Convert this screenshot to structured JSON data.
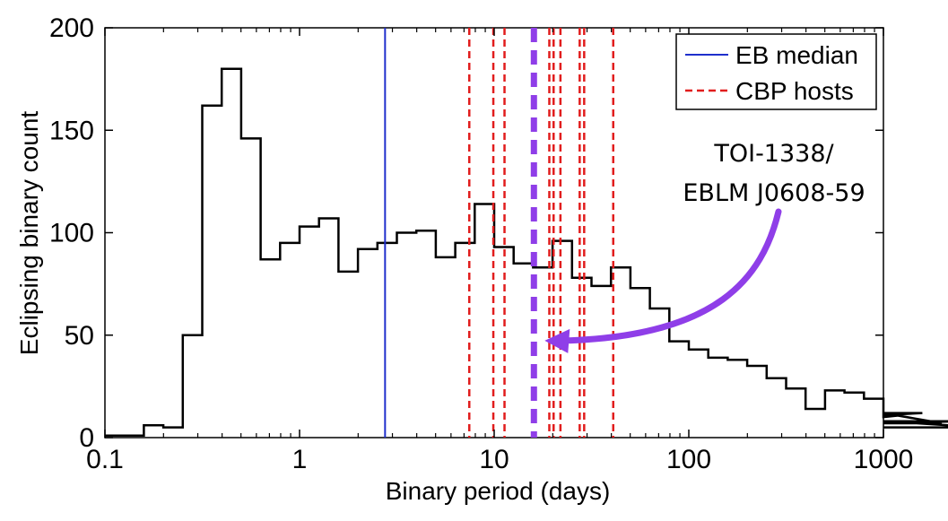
{
  "chart_data": {
    "type": "histogram",
    "xscale": "log",
    "xlabel": "Binary period (days)",
    "ylabel": "Eclipsing binary count",
    "xlim": [
      0.1,
      1000
    ],
    "ylim": [
      0,
      200
    ],
    "xticks": [
      {
        "value": 0.1,
        "label": "0.1"
      },
      {
        "value": 1,
        "label": "1"
      },
      {
        "value": 10,
        "label": "10"
      },
      {
        "value": 100,
        "label": "100"
      },
      {
        "value": 1000,
        "label": "1000"
      }
    ],
    "yticks": [
      {
        "value": 0,
        "label": "0"
      },
      {
        "value": 50,
        "label": "50"
      },
      {
        "value": 100,
        "label": "100"
      },
      {
        "value": 150,
        "label": "150"
      },
      {
        "value": 200,
        "label": "200"
      }
    ],
    "bins_log10_edges_start": -1.0,
    "bin_width_log10": 0.1,
    "counts": [
      1,
      1,
      6,
      5,
      50,
      162,
      180,
      146,
      87,
      95,
      103,
      107,
      81,
      92,
      95,
      100,
      101,
      88,
      95,
      114,
      93,
      85,
      83,
      96,
      78,
      74,
      83,
      73,
      63,
      47,
      43,
      39,
      38,
      35,
      29,
      24,
      14,
      23,
      22,
      19,
      10,
      11,
      12,
      7,
      8,
      5
    ],
    "eb_median": {
      "label": "EB median",
      "period": 2.75,
      "color": "#1f2fcc"
    },
    "cbp_hosts": {
      "label": "CBP hosts",
      "periods": [
        7.45,
        9.9,
        11.3,
        19.2,
        20.2,
        21.9,
        27.5,
        29.0,
        40.9
      ],
      "color": "#e11d1d"
    },
    "highlight": {
      "period": 16.0,
      "color": "#8f3ee8",
      "annotation": [
        "TOI-1338/",
        "EBLM J0608-59"
      ],
      "arrow_target_count": 46
    },
    "legend_position": "top-right"
  }
}
